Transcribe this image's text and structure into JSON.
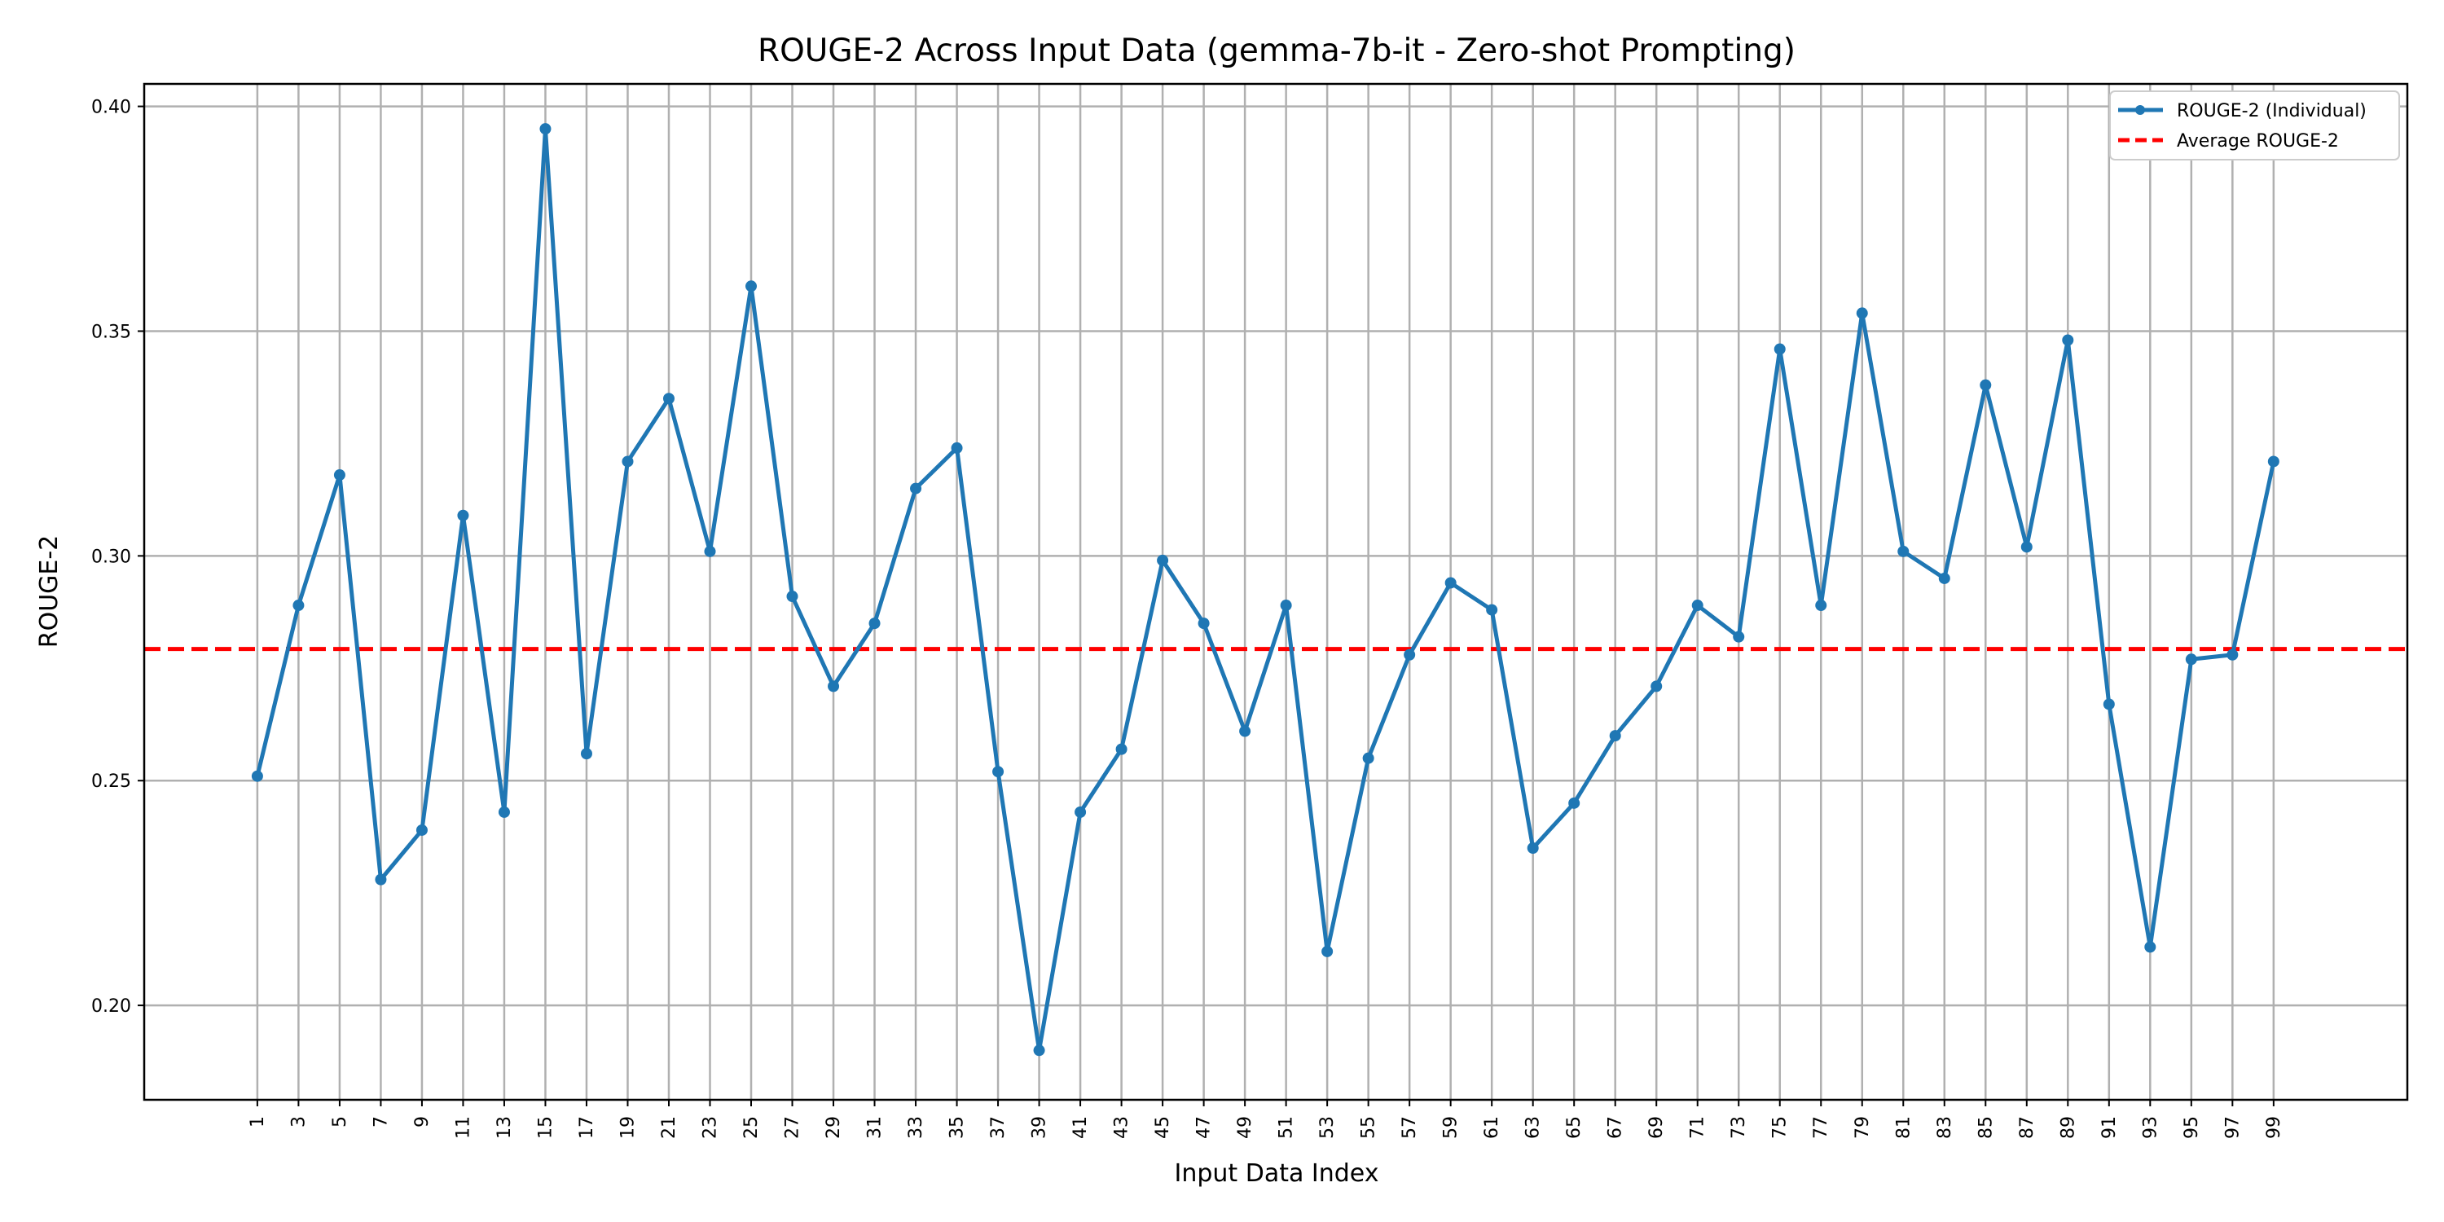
{
  "chart_data": {
    "type": "line",
    "title": "ROUGE-2 Across Input Data (gemma-7b-it - Zero-shot Prompting)",
    "xlabel": "Input Data Index",
    "ylabel": "ROUGE-2",
    "x_ticks": [
      1,
      3,
      5,
      7,
      9,
      11,
      13,
      15,
      17,
      19,
      21,
      23,
      25,
      27,
      29,
      31,
      33,
      35,
      37,
      39,
      41,
      43,
      45,
      47,
      49,
      51,
      53,
      55,
      57,
      59,
      61,
      63,
      65,
      67,
      69,
      71,
      73,
      75,
      77,
      79,
      81,
      83,
      85,
      87,
      89,
      91,
      93,
      95,
      97,
      99
    ],
    "y_ticks": [
      "0.20",
      "0.25",
      "0.30",
      "0.35",
      "0.40"
    ],
    "ylim": [
      0.179,
      0.405
    ],
    "xlim": [
      -4.5,
      105.5
    ],
    "grid": true,
    "legend_position": "top-right",
    "series": [
      {
        "name": "ROUGE-2 (Individual)",
        "color": "#1f77b4",
        "style": "line-with-markers",
        "x": [
          1,
          3,
          5,
          7,
          9,
          11,
          13,
          15,
          17,
          19,
          21,
          23,
          25,
          27,
          29,
          31,
          33,
          35,
          37,
          39,
          41,
          43,
          45,
          47,
          49,
          51,
          53,
          55,
          57,
          59,
          61,
          63,
          65,
          67,
          69,
          71,
          73,
          75,
          77,
          79,
          81,
          83,
          85,
          87,
          89,
          91,
          93,
          95,
          97,
          99
        ],
        "y": [
          0.251,
          0.289,
          0.318,
          0.228,
          0.239,
          0.309,
          0.243,
          0.395,
          0.256,
          0.321,
          0.335,
          0.301,
          0.36,
          0.291,
          0.271,
          0.285,
          0.315,
          0.324,
          0.252,
          0.19,
          0.243,
          0.257,
          0.299,
          0.285,
          0.261,
          0.289,
          0.212,
          0.255,
          0.278,
          0.294,
          0.288,
          0.235,
          0.245,
          0.26,
          0.271,
          0.289,
          0.282,
          0.346,
          0.289,
          0.354,
          0.301,
          0.295,
          0.338,
          0.302,
          0.348,
          0.267,
          0.213,
          0.277,
          0.278,
          0.321
        ]
      },
      {
        "name": "Average ROUGE-2",
        "color": "#ff0000",
        "style": "dashed",
        "value": 0.2793
      }
    ]
  }
}
